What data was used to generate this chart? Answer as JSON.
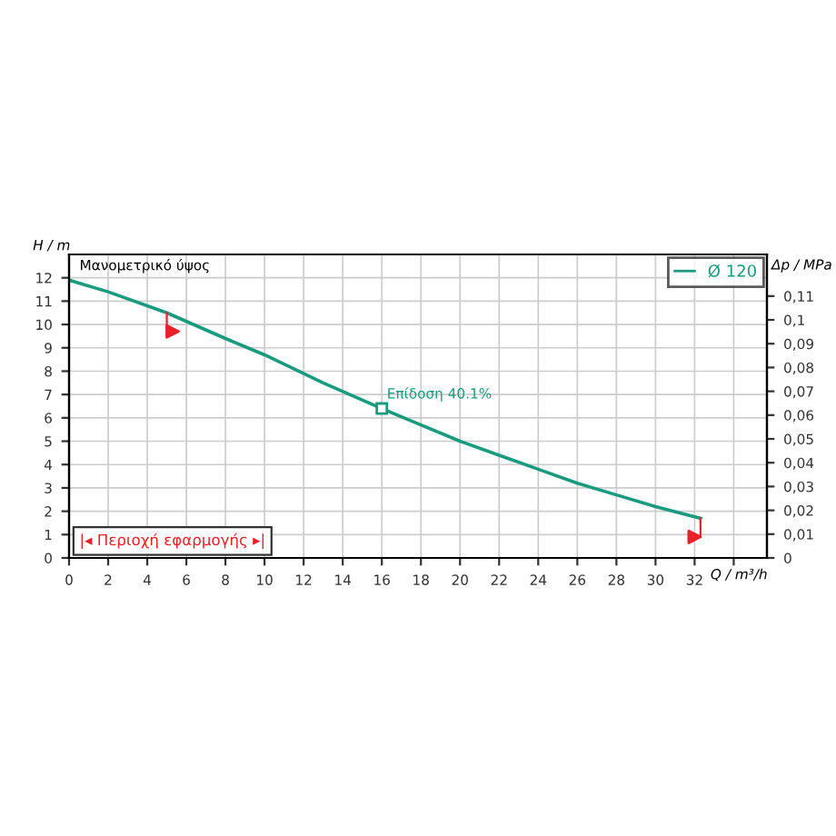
{
  "chart_data": {
    "type": "line",
    "xlabel": "Q / m³/h",
    "ylabel": "H / m",
    "y2label": "Δp / MPa",
    "xlim": [
      0,
      35.7
    ],
    "ylim": [
      0,
      13
    ],
    "y2lim": [
      0,
      0.1275
    ],
    "xticks": [
      0,
      2,
      4,
      6,
      8,
      10,
      12,
      14,
      16,
      18,
      20,
      22,
      24,
      26,
      28,
      30,
      32,
      {
        "value": 34,
        "label": null
      }
    ],
    "yticks": [
      0,
      1,
      2,
      3,
      4,
      5,
      6,
      7,
      8,
      9,
      10,
      11,
      12
    ],
    "y2ticks": [
      0,
      {
        "value": 0.01,
        "label": "0,01"
      },
      {
        "value": 0.02,
        "label": "0,02"
      },
      {
        "value": 0.03,
        "label": "0,03"
      },
      {
        "value": 0.04,
        "label": "0,04"
      },
      {
        "value": 0.05,
        "label": "0,05"
      },
      {
        "value": 0.06,
        "label": "0,06"
      },
      {
        "value": 0.07,
        "label": "0,07"
      },
      {
        "value": 0.08,
        "label": "0,08"
      },
      {
        "value": 0.09,
        "label": "0,09"
      },
      {
        "value": 0.1,
        "label": "0,1"
      },
      {
        "value": 0.11,
        "label": "0,11"
      }
    ],
    "grid": true,
    "legend": "top right",
    "series": [
      {
        "name": "Ø 120",
        "color": "#1a9a7e",
        "x": [
          0,
          2,
          5,
          8,
          10,
          13,
          16,
          18,
          20,
          22,
          24,
          26,
          28,
          30,
          32.3
        ],
        "values": [
          11.9,
          11.4,
          10.5,
          9.4,
          8.7,
          7.5,
          6.4,
          5.7,
          5.0,
          4.4,
          3.8,
          3.2,
          2.7,
          2.2,
          1.7
        ]
      },
      {
        "type": "line",
        "color": "#e8202a",
        "x": [
          5,
          5
        ],
        "values": [
          10.5,
          9.7
        ]
      },
      {
        "type": "line",
        "color": "#e8202a",
        "x": [
          32.3,
          32.3
        ],
        "values": [
          1.7,
          0.9
        ]
      },
      {
        "type": "scatter",
        "color": "#e8202a",
        "marker": "triangle",
        "x": [
          5.3,
          32.0
        ],
        "values": [
          9.7,
          0.9
        ]
      }
    ],
    "annotations": [
      "Μανομετρικό ύψος",
      "|◂ Περιοχή εφαρμογής ▸|",
      {
        "text": "Επίδοση 40.1%",
        "x": 16,
        "y": 6.4
      }
    ]
  }
}
